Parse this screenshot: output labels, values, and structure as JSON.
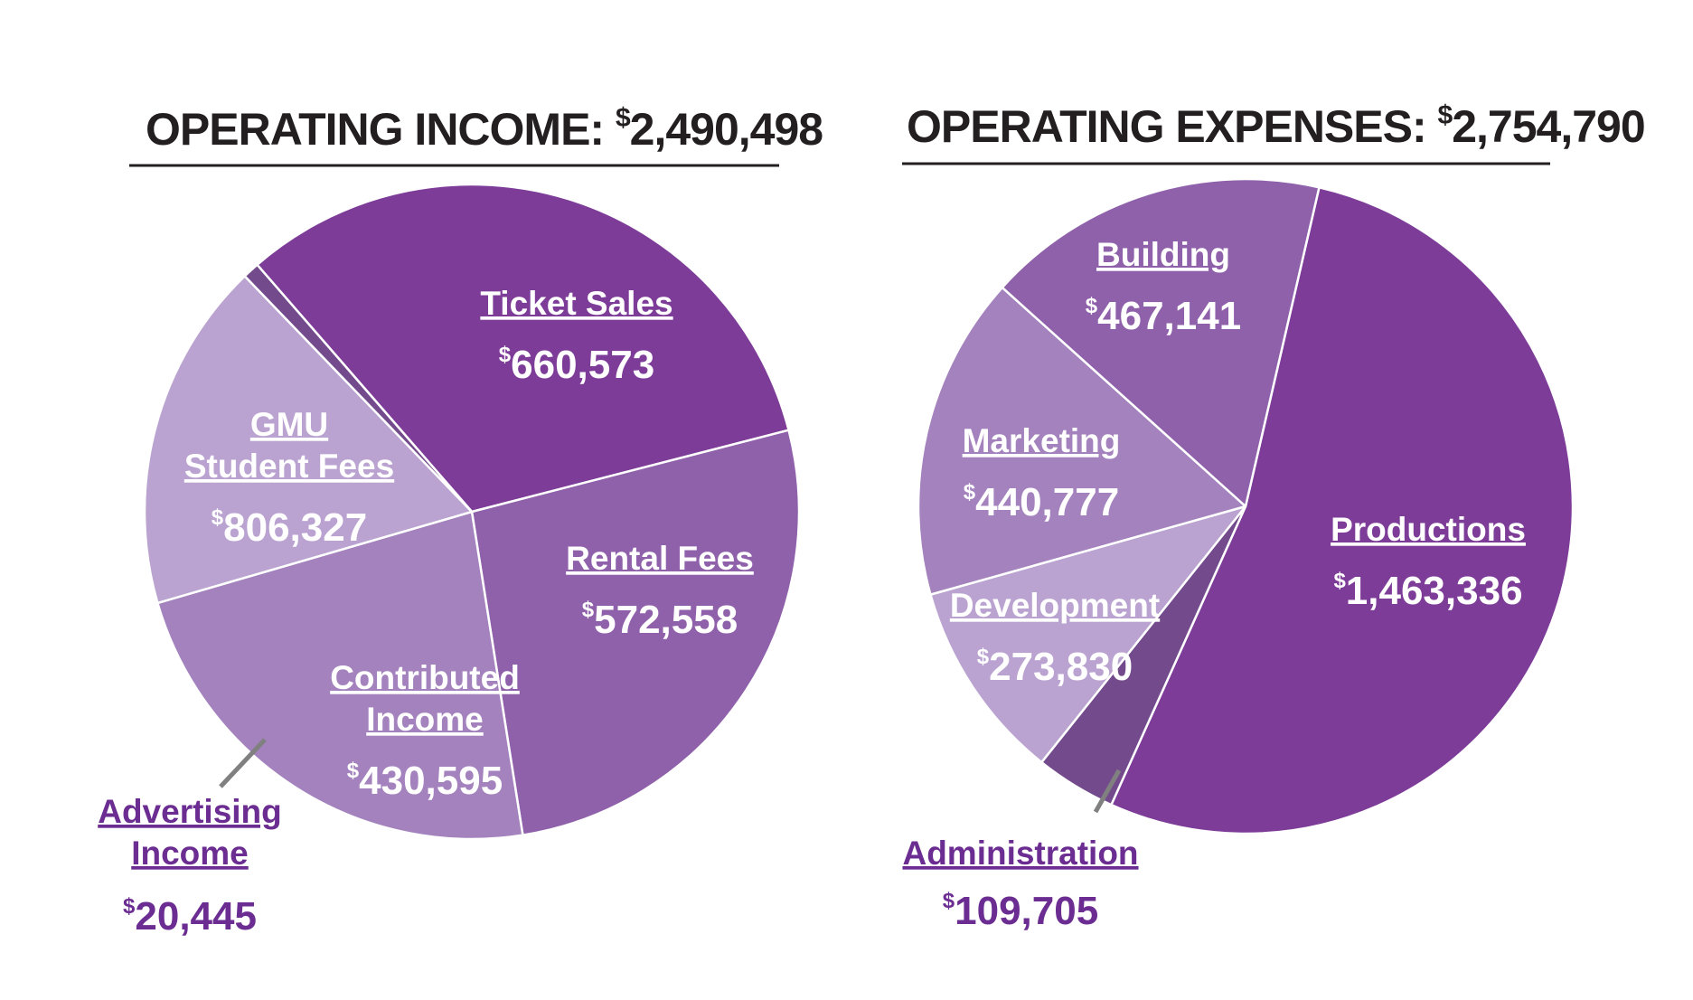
{
  "chart_data": [
    {
      "type": "pie",
      "title": "OPERATING INCOME:",
      "total": "2,490,498",
      "currency": "$",
      "colors": [
        "#7d3c98",
        "#9061ab",
        "#a382bd",
        "#baa3d0",
        "#734b8c"
      ],
      "slices": [
        {
          "label": [
            "GMU",
            "Student Fees"
          ],
          "value": 806327,
          "display": "806,327"
        },
        {
          "label": [
            "Ticket Sales"
          ],
          "value": 660573,
          "display": "660,573"
        },
        {
          "label": [
            "Rental Fees"
          ],
          "value": 572558,
          "display": "572,558"
        },
        {
          "label": [
            "Contributed",
            "Income"
          ],
          "value": 430595,
          "display": "430,595"
        },
        {
          "label": [
            "Advertising",
            "Income"
          ],
          "value": 20445,
          "display": "20,445",
          "external": true
        }
      ]
    },
    {
      "type": "pie",
      "title": "OPERATING EXPENSES:",
      "total": "2,754,790",
      "currency": "$",
      "colors": [
        "#7d3c98",
        "#734b8c",
        "#baa3d0",
        "#a382bd",
        "#9061ab"
      ],
      "slices": [
        {
          "label": [
            "Productions"
          ],
          "value": 1463336,
          "display": "1,463,336"
        },
        {
          "label": [
            "Administration"
          ],
          "value": 109705,
          "display": "109,705",
          "external": true
        },
        {
          "label": [
            "Development"
          ],
          "value": 273830,
          "display": "273,830"
        },
        {
          "label": [
            "Marketing"
          ],
          "value": 440777,
          "display": "440,777"
        },
        {
          "label": [
            "Building"
          ],
          "value": 467141,
          "display": "467,141"
        }
      ]
    }
  ]
}
